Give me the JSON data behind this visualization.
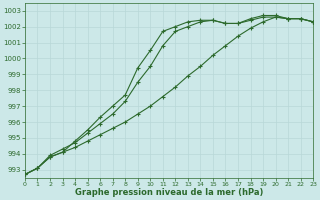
{
  "x": [
    0,
    1,
    2,
    3,
    4,
    5,
    6,
    7,
    8,
    9,
    10,
    11,
    12,
    13,
    14,
    15,
    16,
    17,
    18,
    19,
    20,
    21,
    22,
    23
  ],
  "line1": [
    992.7,
    993.1,
    993.8,
    994.1,
    994.8,
    995.5,
    996.3,
    997.0,
    997.7,
    999.4,
    1000.5,
    1001.7,
    1002.0,
    1002.3,
    1002.4,
    1002.4,
    1002.2,
    1002.2,
    1002.4,
    1002.6,
    1002.6,
    1002.5,
    1002.5,
    1002.3
  ],
  "line2": [
    992.7,
    993.1,
    993.8,
    994.1,
    994.4,
    994.8,
    995.2,
    995.6,
    996.0,
    996.5,
    997.0,
    997.6,
    998.2,
    998.9,
    999.5,
    1000.2,
    1000.8,
    1001.4,
    1001.9,
    1002.3,
    1002.6,
    1002.5,
    1002.5,
    1002.3
  ],
  "line3": [
    992.7,
    993.1,
    993.9,
    994.3,
    994.7,
    995.3,
    995.9,
    996.5,
    997.3,
    998.5,
    999.5,
    1000.8,
    1001.7,
    1002.0,
    1002.3,
    1002.4,
    1002.2,
    1002.2,
    1002.5,
    1002.7,
    1002.7,
    1002.5,
    1002.5,
    1002.3
  ],
  "ylim": [
    992.5,
    1003.5
  ],
  "ytick_min": 993,
  "ytick_max": 1003,
  "ytick_step": 1,
  "xlim": [
    0,
    23
  ],
  "xticks": [
    0,
    1,
    2,
    3,
    4,
    5,
    6,
    7,
    8,
    9,
    10,
    11,
    12,
    13,
    14,
    15,
    16,
    17,
    18,
    19,
    20,
    21,
    22,
    23
  ],
  "xlabel": "Graphe pression niveau de la mer (hPa)",
  "line_color": "#2d6a2d",
  "bg_color": "#cce8e8",
  "grid_color": "#aaaaaa",
  "marker": "+",
  "marker_size": 3,
  "linewidth": 0.8
}
